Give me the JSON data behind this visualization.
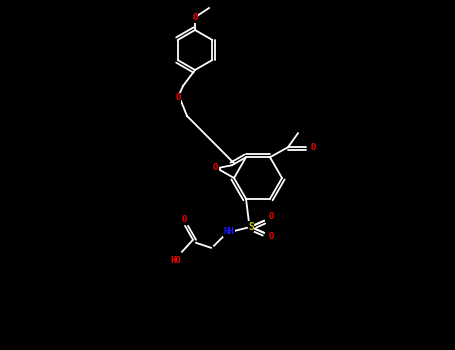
{
  "background_color": "#000000",
  "bond_color": "#ffffff",
  "atom_colors": {
    "O": "#ff0000",
    "N": "#1a1aff",
    "S": "#cccc00",
    "C": "#808080",
    "H": "#ffffff"
  },
  "figsize": [
    4.55,
    3.5
  ],
  "dpi": 100
}
